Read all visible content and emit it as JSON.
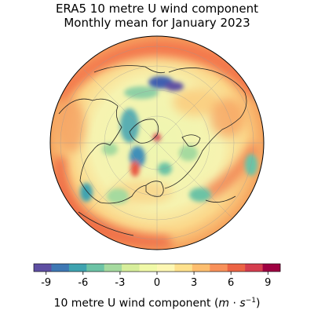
{
  "title": {
    "line1": "ERA5 10 metre U wind component",
    "line2": "Monthly mean for January 2023"
  },
  "map": {
    "projection": "orthographic (north polar view)",
    "coastlines": true,
    "graticule": true
  },
  "colorbar": {
    "colormap": [
      "#5e4fa2",
      "#3f78b4",
      "#3fa3b0",
      "#6cc3a5",
      "#a5da9f",
      "#d7ee9b",
      "#f0f9a8",
      "#fdf7b3",
      "#fee18d",
      "#fdbe6f",
      "#f8915a",
      "#ec6445",
      "#d53e4f",
      "#9e0142"
    ],
    "vmin": -10,
    "vmax": 10,
    "ticks": [
      "-9",
      "-6",
      "-3",
      "0",
      "3",
      "6",
      "9"
    ],
    "tick_values": [
      -9,
      -6,
      -3,
      0,
      3,
      6,
      9
    ],
    "label_main": "10 metre U wind component (",
    "label_unit_m": "m",
    "label_dot": " · ",
    "label_unit_s": "s",
    "label_exp": "−1",
    "label_close": ")"
  }
}
